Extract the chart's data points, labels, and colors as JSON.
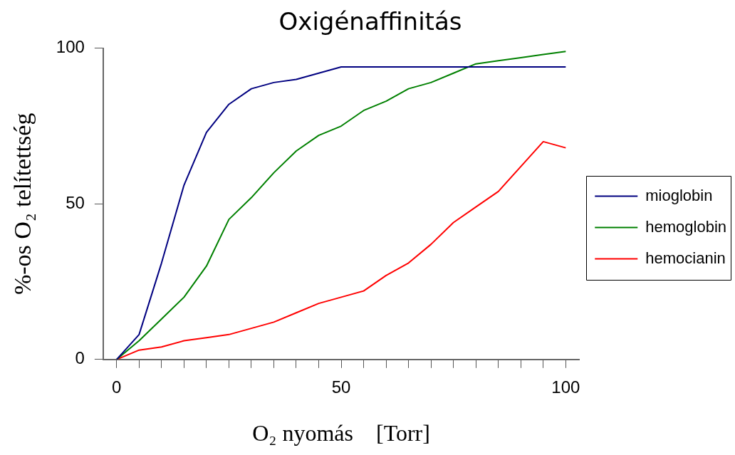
{
  "chart_data": {
    "type": "line",
    "title": "Oxigénaffinitás",
    "xlabel": "O₂ nyomás    [Torr]",
    "ylabel": "%-os O₂ telítettség",
    "x": [
      0,
      5,
      10,
      15,
      20,
      25,
      30,
      35,
      40,
      45,
      50,
      55,
      60,
      65,
      70,
      75,
      80,
      85,
      90,
      95,
      100
    ],
    "xlim": [
      -3,
      103
    ],
    "xticks": [
      0,
      {
        "value": 5,
        "label": null
      },
      {
        "value": 10,
        "label": null
      },
      {
        "value": 15,
        "label": null
      },
      {
        "value": 20,
        "label": null
      },
      {
        "value": 25,
        "label": null
      },
      {
        "value": 30,
        "label": null
      },
      {
        "value": 35,
        "label": null
      },
      {
        "value": 40,
        "label": null
      },
      {
        "value": 45,
        "label": null
      },
      50,
      {
        "value": 55,
        "label": null
      },
      {
        "value": 60,
        "label": null
      },
      {
        "value": 65,
        "label": null
      },
      {
        "value": 70,
        "label": null
      },
      {
        "value": 75,
        "label": null
      },
      {
        "value": 80,
        "label": null
      },
      {
        "value": 85,
        "label": null
      },
      {
        "value": 90,
        "label": null
      },
      {
        "value": 95,
        "label": null
      },
      100
    ],
    "ylim": [
      0,
      100
    ],
    "yticks": [
      0,
      50,
      100
    ],
    "grid": false,
    "legend": "right",
    "marker": "none",
    "line_style": "solid",
    "series": [
      {
        "name": "mioglobin",
        "color": "#000080",
        "values": [
          0,
          8,
          31,
          56,
          73,
          82,
          87,
          89,
          90,
          92,
          94,
          94,
          94,
          94,
          94,
          94,
          94,
          94,
          94,
          94,
          94
        ]
      },
      {
        "name": "hemoglobin",
        "color": "#008000",
        "values": [
          0,
          6,
          13,
          20,
          30,
          45,
          52,
          60,
          67,
          72,
          75,
          80,
          83,
          87,
          89,
          92,
          95,
          96,
          97,
          98,
          99
        ]
      },
      {
        "name": "hemocianin",
        "color": "#ff0000",
        "values": [
          0,
          3,
          4,
          6,
          7,
          8,
          10,
          12,
          15,
          18,
          20,
          22,
          27,
          31,
          37,
          44,
          49,
          54,
          62,
          70,
          68
        ]
      }
    ]
  }
}
